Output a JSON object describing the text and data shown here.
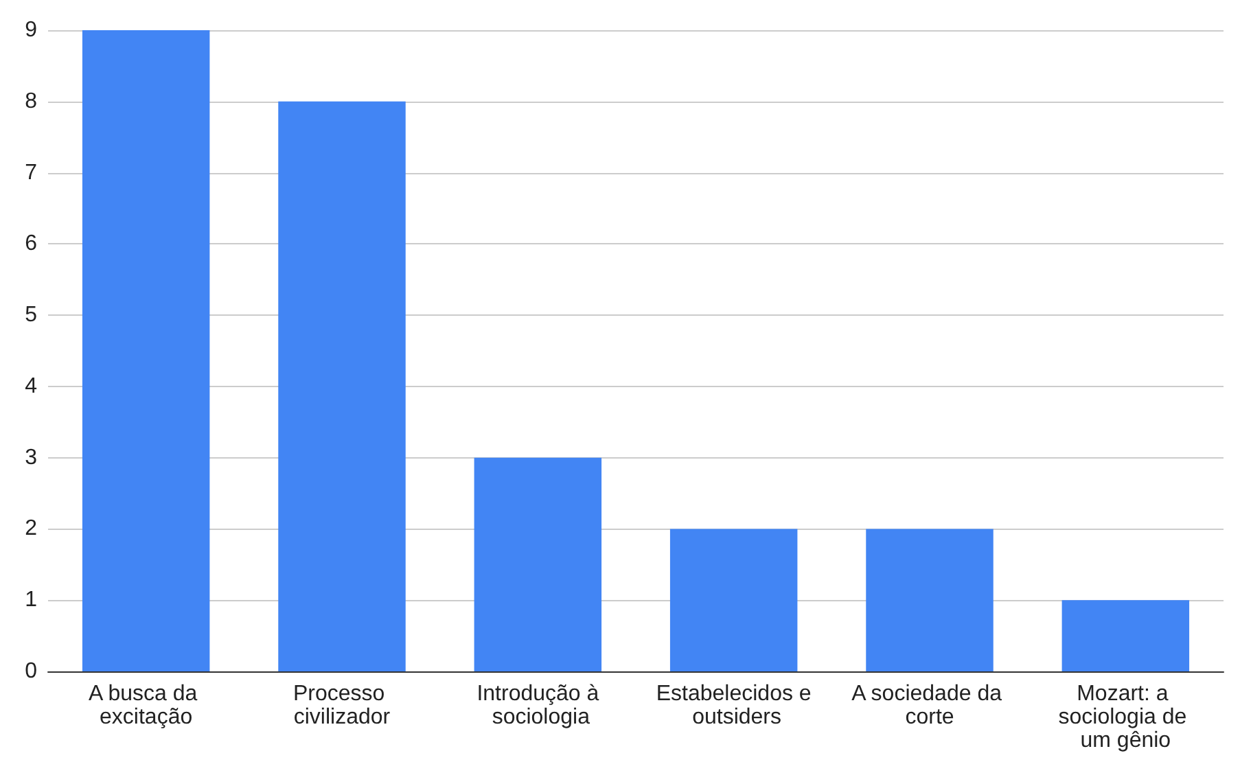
{
  "chart_data": {
    "type": "bar",
    "categories": [
      "A busca da excitação",
      "Processo civilizador",
      "Introdução à sociologia",
      "Estabelecidos e outsiders",
      "A sociedade da corte",
      "Mozart: a sociologia de um gênio"
    ],
    "values": [
      9,
      8,
      3,
      2,
      2,
      1
    ],
    "color": "#4285f4",
    "ylim": [
      0,
      9
    ],
    "yticks": [
      0,
      1,
      2,
      3,
      4,
      5,
      6,
      7,
      8,
      9
    ],
    "grid": "y"
  }
}
